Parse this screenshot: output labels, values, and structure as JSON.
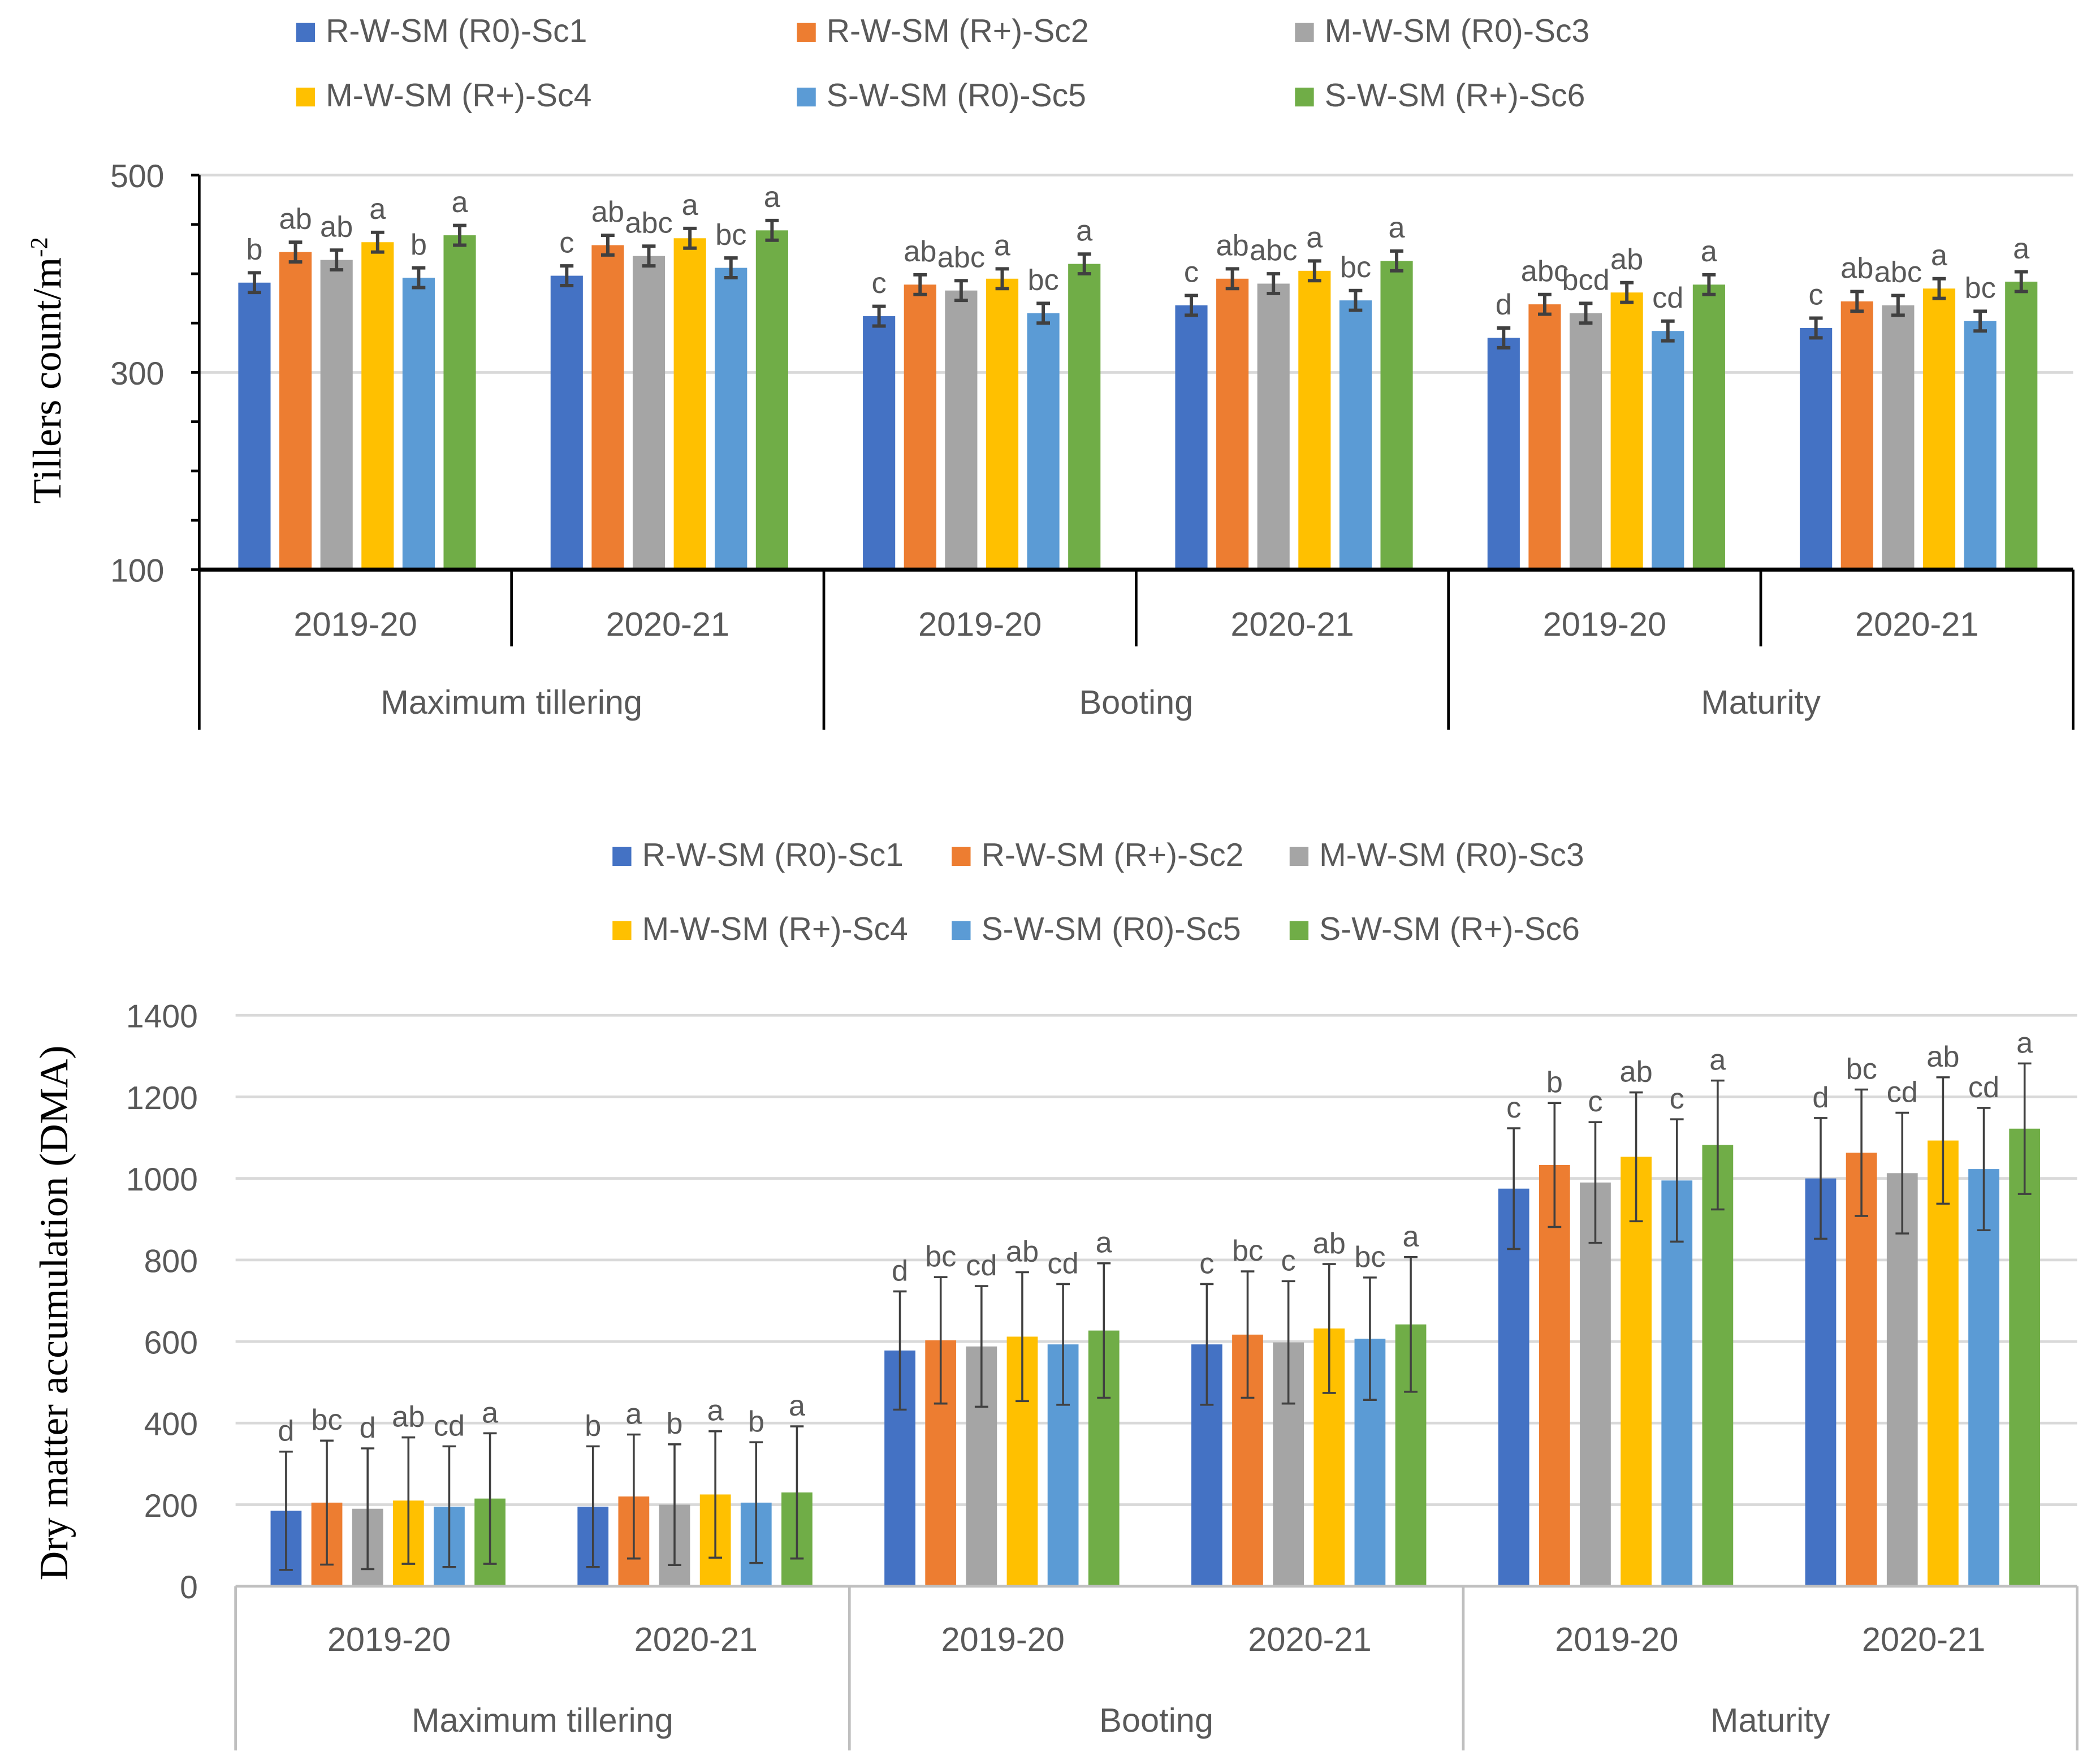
{
  "colors": [
    "#4472C4",
    "#ED7D31",
    "#A5A5A5",
    "#FFC000",
    "#5B9BD5",
    "#70AD47"
  ],
  "chart_data": [
    {
      "type": "bar",
      "title": "",
      "ylabel": "Tillers count/m",
      "ylabel_sup": "-2",
      "xlabel": "",
      "ylim": [
        100,
        500
      ],
      "yticks": [
        100,
        300,
        500
      ],
      "grid": true,
      "legend_position": "top",
      "stages": [
        "Maximum tillering",
        "Booting",
        "Maturity"
      ],
      "categories": [
        "2019-20",
        "2020-21",
        "2019-20",
        "2020-21",
        "2019-20",
        "2020-21"
      ],
      "series": [
        {
          "name": "R-W-SM (R0)-Sc1",
          "values": [
            391,
            398,
            357,
            368,
            335,
            345
          ],
          "errors": [
            10,
            10,
            10,
            10,
            10,
            10
          ],
          "letters": [
            "b",
            "c",
            "c",
            "c",
            "d",
            "c"
          ]
        },
        {
          "name": "R-W-SM (R+)-Sc2",
          "values": [
            422,
            429,
            389,
            395,
            369,
            372
          ],
          "errors": [
            10,
            10,
            10,
            10,
            10,
            10
          ],
          "letters": [
            "ab",
            "ab",
            "ab",
            "ab",
            "abc",
            "ab"
          ]
        },
        {
          "name": "M-W-SM (R0)-Sc3",
          "values": [
            414,
            418,
            383,
            390,
            360,
            368
          ],
          "errors": [
            10,
            10,
            10,
            10,
            10,
            10
          ],
          "letters": [
            "ab",
            "abc",
            "abc",
            "abc",
            "bcd",
            "abc"
          ]
        },
        {
          "name": "M-W-SM (R+)-Sc4",
          "values": [
            432,
            436,
            395,
            403,
            381,
            385
          ],
          "errors": [
            10,
            10,
            10,
            10,
            10,
            10
          ],
          "letters": [
            "a",
            "a",
            "a",
            "a",
            "ab",
            "a"
          ]
        },
        {
          "name": "S-W-SM (R0)-Sc5",
          "values": [
            396,
            406,
            360,
            373,
            342,
            352
          ],
          "errors": [
            10,
            10,
            10,
            10,
            10,
            10
          ],
          "letters": [
            "b",
            "bc",
            "bc",
            "bc",
            "cd",
            "bc"
          ]
        },
        {
          "name": "S-W-SM (R+)-Sc6",
          "values": [
            439,
            444,
            410,
            413,
            389,
            392
          ],
          "errors": [
            10,
            10,
            10,
            10,
            10,
            10
          ],
          "letters": [
            "a",
            "a",
            "a",
            "a",
            "a",
            "a"
          ]
        }
      ]
    },
    {
      "type": "bar",
      "title": "",
      "ylabel": "Dry matter accumulation (DMA)",
      "xlabel": "",
      "ylim": [
        0,
        1400
      ],
      "yticks": [
        0,
        200,
        400,
        600,
        800,
        1000,
        1200,
        1400
      ],
      "grid": true,
      "legend_position": "top",
      "stages": [
        "Maximum tillering",
        "Booting",
        "Maturity"
      ],
      "categories": [
        "2019-20",
        "2020-21",
        "2019-20",
        "2020-21",
        "2019-20",
        "2020-21"
      ],
      "series": [
        {
          "name": "R-W-SM (R0)-Sc1",
          "values": [
            185,
            195,
            578,
            593,
            975,
            1000
          ],
          "errors": [
            145,
            148,
            145,
            148,
            148,
            148
          ],
          "letters": [
            "d",
            "b",
            "d",
            "c",
            "c",
            "d"
          ]
        },
        {
          "name": "R-W-SM (R+)-Sc2",
          "values": [
            205,
            220,
            603,
            617,
            1033,
            1063
          ],
          "errors": [
            152,
            152,
            155,
            155,
            152,
            155
          ],
          "letters": [
            "bc",
            "a",
            "bc",
            "bc",
            "b",
            "bc"
          ]
        },
        {
          "name": "M-W-SM (R0)-Sc3",
          "values": [
            190,
            200,
            588,
            598,
            990,
            1013
          ],
          "errors": [
            148,
            148,
            148,
            150,
            148,
            148
          ],
          "letters": [
            "d",
            "b",
            "cd",
            "c",
            "c",
            "cd"
          ]
        },
        {
          "name": "M-W-SM (R+)-Sc4",
          "values": [
            210,
            225,
            612,
            632,
            1053,
            1093
          ],
          "errors": [
            155,
            155,
            158,
            158,
            158,
            155
          ],
          "letters": [
            "ab",
            "a",
            "ab",
            "ab",
            "ab",
            "ab"
          ]
        },
        {
          "name": "S-W-SM (R0)-Sc5",
          "values": [
            195,
            205,
            593,
            607,
            995,
            1023
          ],
          "errors": [
            148,
            148,
            148,
            150,
            150,
            150
          ],
          "letters": [
            "cd",
            "b",
            "cd",
            "bc",
            "c",
            "cd"
          ]
        },
        {
          "name": "S-W-SM (R+)-Sc6",
          "values": [
            215,
            230,
            627,
            642,
            1082,
            1122
          ],
          "errors": [
            160,
            162,
            165,
            165,
            158,
            160
          ],
          "letters": [
            "a",
            "a",
            "a",
            "a",
            "a",
            "a"
          ]
        }
      ]
    }
  ]
}
